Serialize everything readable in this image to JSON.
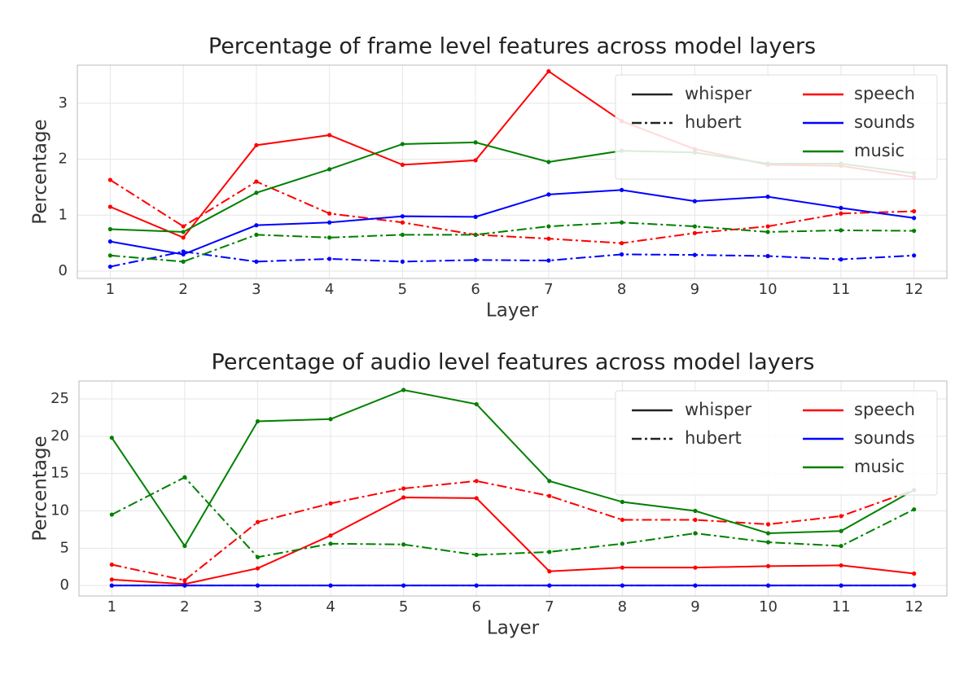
{
  "chart_data": [
    {
      "type": "line",
      "title": "Percentage of frame level features across model layers",
      "x_label": "Layer",
      "y_label": "Percentage",
      "x": [
        1,
        2,
        3,
        4,
        5,
        6,
        7,
        8,
        9,
        10,
        11,
        12
      ],
      "xlim": [
        0.55,
        12.45
      ],
      "xticks": [
        1,
        2,
        3,
        4,
        5,
        6,
        7,
        8,
        9,
        10,
        11,
        12
      ],
      "ylim": [
        -0.13,
        3.68
      ],
      "yticks": [
        0,
        1,
        2,
        3
      ],
      "grid": true,
      "legend": "upper right",
      "styles": [
        {
          "name": "whisper",
          "dash": "solid"
        },
        {
          "name": "hubert",
          "dash": "dashdot"
        }
      ],
      "series": [
        {
          "name": "speech",
          "color": "#ff0000",
          "values": [
            [
              1.15,
              0.6,
              2.25,
              2.43,
              1.9,
              1.98,
              3.57,
              2.68,
              2.18,
              1.9,
              1.88,
              1.68
            ],
            [
              1.63,
              0.8,
              1.6,
              1.03,
              0.87,
              0.65,
              0.58,
              0.5,
              0.68,
              0.8,
              1.03,
              1.07
            ]
          ]
        },
        {
          "name": "sounds",
          "color": "#0000ff",
          "values": [
            [
              0.53,
              0.3,
              0.82,
              0.87,
              0.98,
              0.97,
              1.37,
              1.45,
              1.25,
              1.33,
              1.13,
              0.95
            ],
            [
              0.08,
              0.35,
              0.17,
              0.22,
              0.17,
              0.2,
              0.19,
              0.3,
              0.29,
              0.27,
              0.21,
              0.28
            ]
          ]
        },
        {
          "name": "music",
          "color": "#008000",
          "values": [
            [
              0.75,
              0.7,
              1.4,
              1.82,
              2.27,
              2.3,
              1.95,
              2.15,
              2.12,
              1.92,
              1.92,
              1.75
            ],
            [
              0.28,
              0.17,
              0.65,
              0.6,
              0.65,
              0.65,
              0.8,
              0.87,
              0.8,
              0.7,
              0.73,
              0.72
            ]
          ]
        }
      ]
    },
    {
      "type": "line",
      "title": "Percentage of audio level features across model layers",
      "x_label": "Layer",
      "y_label": "Percentage",
      "x": [
        1,
        2,
        3,
        4,
        5,
        6,
        7,
        8,
        9,
        10,
        11,
        12
      ],
      "xlim": [
        0.55,
        12.45
      ],
      "xticks": [
        1,
        2,
        3,
        4,
        5,
        6,
        7,
        8,
        9,
        10,
        11,
        12
      ],
      "ylim": [
        -1.4,
        27.4
      ],
      "yticks": [
        0,
        5,
        10,
        15,
        20,
        25
      ],
      "grid": true,
      "legend": "upper right",
      "styles": [
        {
          "name": "whisper",
          "dash": "solid"
        },
        {
          "name": "hubert",
          "dash": "dashdot"
        }
      ],
      "series": [
        {
          "name": "speech",
          "color": "#ff0000",
          "values": [
            [
              0.8,
              0.2,
              2.3,
              6.7,
              11.8,
              11.7,
              1.9,
              2.4,
              2.4,
              2.6,
              2.7,
              1.6
            ],
            [
              2.8,
              0.7,
              8.5,
              11.0,
              13.0,
              14.0,
              12.0,
              8.8,
              8.8,
              8.2,
              9.3,
              12.8
            ]
          ]
        },
        {
          "name": "sounds",
          "color": "#0000ff",
          "values": [
            [
              0,
              0,
              0,
              0,
              0,
              0,
              0,
              0,
              0,
              0,
              0,
              0
            ],
            [
              0,
              0,
              0,
              0,
              0,
              0,
              0,
              0,
              0,
              0,
              0,
              0
            ]
          ]
        },
        {
          "name": "music",
          "color": "#008000",
          "values": [
            [
              19.8,
              5.3,
              22.0,
              22.3,
              26.2,
              24.3,
              14.0,
              11.2,
              10.0,
              7.0,
              7.3,
              12.8
            ],
            [
              9.5,
              14.5,
              3.8,
              5.6,
              5.5,
              4.1,
              4.5,
              5.6,
              7.0,
              5.8,
              5.3,
              10.2
            ]
          ]
        }
      ]
    }
  ]
}
